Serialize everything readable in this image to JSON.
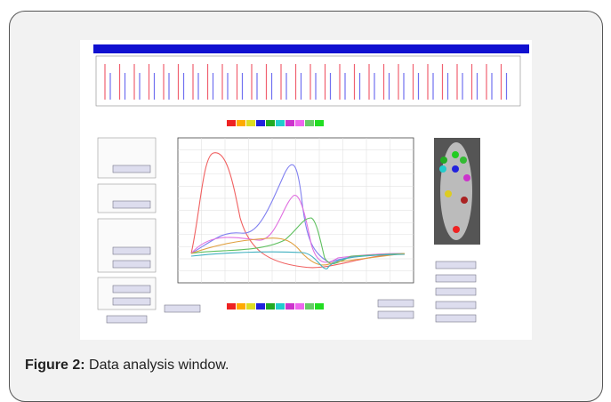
{
  "figure": {
    "caption_label": "Figure 2:",
    "caption_text": "Data analysis window."
  }
}
